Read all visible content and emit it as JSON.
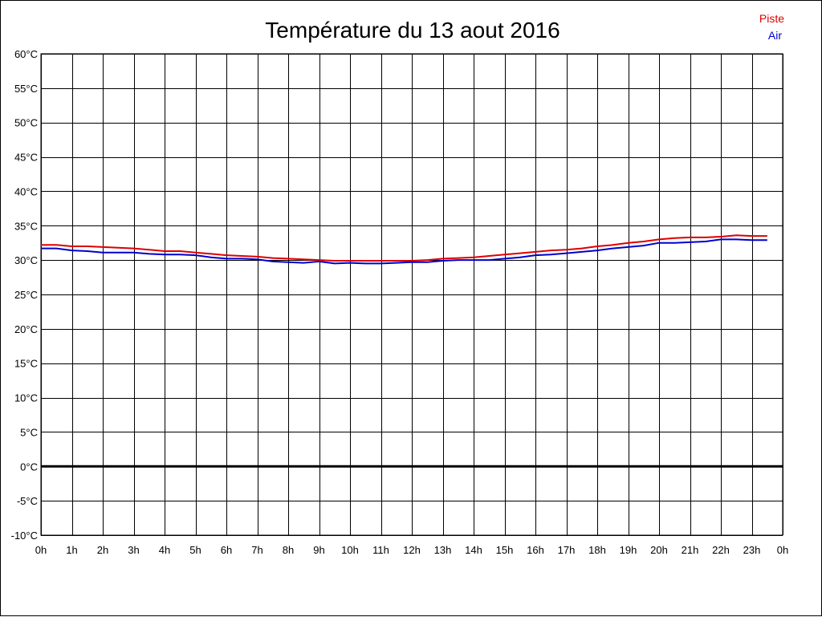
{
  "chart_data": {
    "type": "line",
    "title": "Température du 13 aout 2016",
    "xlabel": "",
    "ylabel": "",
    "xlim": [
      0,
      24
    ],
    "ylim": [
      -10,
      60
    ],
    "grid": true,
    "legend_position": "top-right",
    "x_tick_labels": [
      "0h",
      "1h",
      "2h",
      "3h",
      "4h",
      "5h",
      "6h",
      "7h",
      "8h",
      "9h",
      "10h",
      "11h",
      "12h",
      "13h",
      "14h",
      "15h",
      "16h",
      "17h",
      "18h",
      "19h",
      "20h",
      "21h",
      "22h",
      "23h",
      "0h"
    ],
    "y_tick_labels": [
      "60°C",
      "55°C",
      "50°C",
      "45°C",
      "40°C",
      "35°C",
      "30°C",
      "25°C",
      "20°C",
      "15°C",
      "10°C",
      "5°C",
      "0°C",
      "-5°C",
      "-10°C"
    ],
    "y_tick_values": [
      60,
      55,
      50,
      45,
      40,
      35,
      30,
      25,
      20,
      15,
      10,
      5,
      0,
      -5,
      -10
    ],
    "series": [
      {
        "name": "Piste",
        "color": "#dd0000",
        "x": [
          0,
          0.5,
          1,
          1.5,
          2,
          2.5,
          3,
          3.5,
          4,
          4.5,
          5,
          5.5,
          6,
          6.5,
          7,
          7.5,
          8,
          8.5,
          9,
          9.5,
          10,
          10.5,
          11,
          11.5,
          12,
          12.5,
          13,
          13.5,
          14,
          14.5,
          15,
          15.5,
          16,
          16.5,
          17,
          17.5,
          18,
          18.5,
          19,
          19.5,
          20,
          20.5,
          21,
          21.5,
          22,
          22.5,
          23,
          23.5
        ],
        "values": [
          32.2,
          32.2,
          32.0,
          32.0,
          31.9,
          31.8,
          31.7,
          31.5,
          31.3,
          31.3,
          31.1,
          30.9,
          30.7,
          30.6,
          30.5,
          30.3,
          30.2,
          30.1,
          30.0,
          29.9,
          29.9,
          29.9,
          29.9,
          29.9,
          29.9,
          30.0,
          30.2,
          30.3,
          30.4,
          30.6,
          30.8,
          31.0,
          31.2,
          31.4,
          31.5,
          31.7,
          32.0,
          32.2,
          32.5,
          32.7,
          33.0,
          33.2,
          33.3,
          33.3,
          33.4,
          33.6,
          33.5,
          33.5
        ]
      },
      {
        "name": "Air",
        "color": "#0000cc",
        "x": [
          0,
          0.5,
          1,
          1.5,
          2,
          2.5,
          3,
          3.5,
          4,
          4.5,
          5,
          5.5,
          6,
          6.5,
          7,
          7.5,
          8,
          8.5,
          9,
          9.5,
          10,
          10.5,
          11,
          11.5,
          12,
          12.5,
          13,
          13.5,
          14,
          14.5,
          15,
          15.5,
          16,
          16.5,
          17,
          17.5,
          18,
          18.5,
          19,
          19.5,
          20,
          20.5,
          21,
          21.5,
          22,
          22.5,
          23,
          23.5
        ],
        "values": [
          31.7,
          31.7,
          31.4,
          31.3,
          31.1,
          31.1,
          31.1,
          30.9,
          30.8,
          30.8,
          30.7,
          30.4,
          30.2,
          30.2,
          30.1,
          29.8,
          29.7,
          29.6,
          29.8,
          29.5,
          29.6,
          29.5,
          29.5,
          29.6,
          29.7,
          29.7,
          29.9,
          30.0,
          30.0,
          30.0,
          30.2,
          30.4,
          30.7,
          30.8,
          31.0,
          31.2,
          31.4,
          31.7,
          31.9,
          32.1,
          32.5,
          32.5,
          32.6,
          32.7,
          33.0,
          33.0,
          32.9,
          32.9
        ]
      }
    ]
  }
}
